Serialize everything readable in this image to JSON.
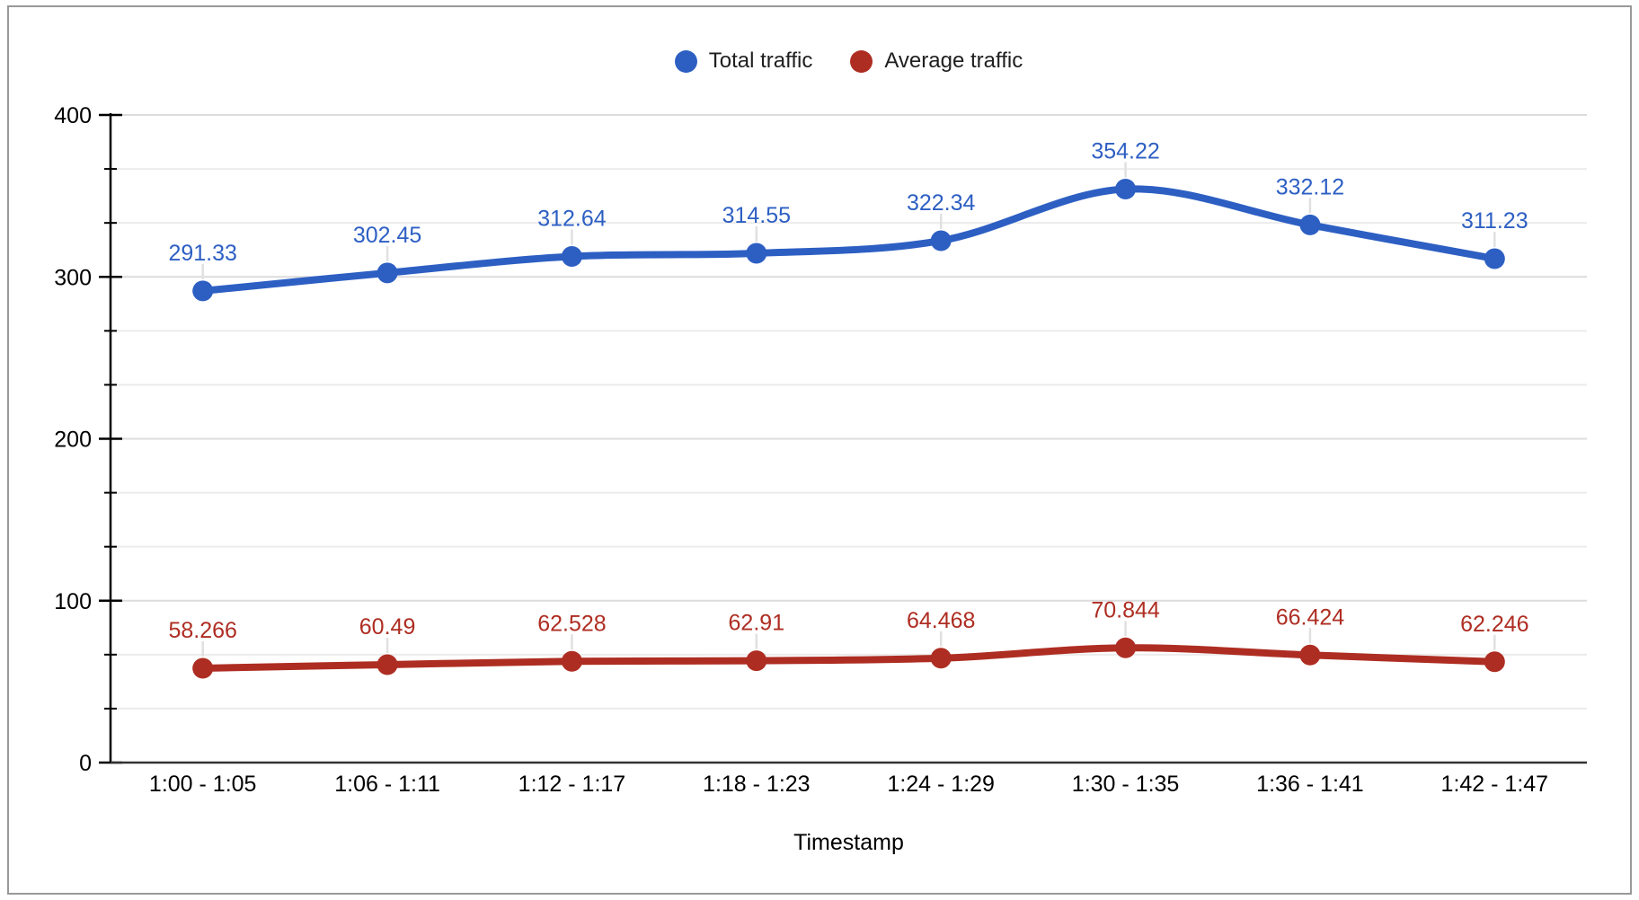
{
  "chart_data": {
    "type": "line",
    "smooth": true,
    "point_labels": true,
    "grid": "horizontal-major-and-minor",
    "legend_position": "top-center",
    "xlabel": "Timestamp",
    "ylim": [
      0,
      400
    ],
    "y_major_step": 100,
    "y_minor_divisions": 3,
    "y_tick_labels": [
      "0",
      "100",
      "200",
      "300",
      "400"
    ],
    "categories": [
      "1:00 - 1:05",
      "1:06 - 1:11",
      "1:12 - 1:17",
      "1:18 - 1:23",
      "1:24 - 1:29",
      "1:30 - 1:35",
      "1:36 - 1:41",
      "1:42 - 1:47"
    ],
    "series": [
      {
        "name": "Total traffic",
        "color": "#2d5fc3",
        "values": [
          291.33,
          302.45,
          312.64,
          314.55,
          322.34,
          354.22,
          332.12,
          311.23
        ],
        "labels": [
          "291.33",
          "302.45",
          "312.64",
          "314.55",
          "322.34",
          "354.22",
          "332.12",
          "311.23"
        ]
      },
      {
        "name": "Average traffic",
        "color": "#ae2d22",
        "values": [
          58.266,
          60.49,
          62.528,
          62.91,
          64.468,
          70.844,
          66.424,
          62.246
        ],
        "labels": [
          "58.266",
          "60.49",
          "62.528",
          "62.91",
          "64.468",
          "70.844",
          "66.424",
          "62.246"
        ]
      }
    ]
  },
  "style": {
    "major_grid_color": "#dcdcdc",
    "minor_grid_color": "#ececec",
    "axis_color": "#000000",
    "baseline_color": "#333333",
    "leader_color": "#e0e0e0",
    "tick_label_color": "#000000"
  }
}
